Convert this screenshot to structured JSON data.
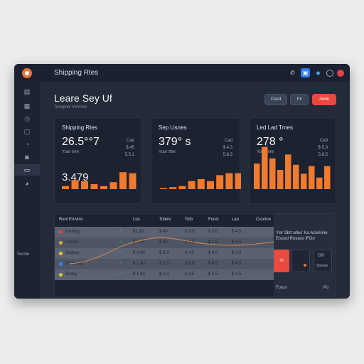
{
  "app": {
    "title": "Shipping Rtes"
  },
  "titlebar_icons": [
    "phone-icon",
    "calendar-icon",
    "app-icon",
    "smile-icon",
    "record-icon"
  ],
  "sidebar": {
    "items": [
      "box-icon",
      "grid-icon",
      "clock-icon",
      "calendar-icon",
      "tag-icon",
      "bag-icon",
      "card-icon",
      "truck-icon"
    ],
    "label": "Seroin"
  },
  "header": {
    "title": "Leare Sey Uf",
    "subtitle": "Tecspncl Verrnne",
    "buttons": [
      "Coed",
      "Fil",
      "Aride"
    ]
  },
  "cards": [
    {
      "title": "Shipping Rtes",
      "value": "26.5°°7",
      "note": "Yuor inre",
      "side": [
        "Cad",
        "$ 45",
        "5.5.1"
      ],
      "big": "3.479",
      "bars": [
        3,
        9,
        8,
        5,
        3,
        7,
        17,
        16
      ]
    },
    {
      "title": "Sep Lisnes",
      "value": "379° s",
      "note": "Yuor Ithe",
      "side": [
        "Cad",
        "$ 4.3",
        "5.8.3"
      ],
      "big": "",
      "bars": [
        1,
        2,
        3,
        8,
        10,
        8,
        14,
        16,
        16
      ]
    },
    {
      "title": "Led Lad Tmes",
      "value": "278 °",
      "note": "Your Inre",
      "side": [
        "Cad",
        "$ 5.3",
        "5.8.5"
      ],
      "big": "",
      "bars": [
        20,
        33,
        24,
        15,
        27,
        19,
        12,
        18,
        9,
        18
      ]
    }
  ],
  "table": {
    "headers": [
      "Reol Emvins",
      "Lus",
      "Toiere",
      "Toib",
      "Fouls",
      "Lao",
      "Cuorine"
    ],
    "rows": [
      {
        "name": "Bxdiopy",
        "color": "#e24545",
        "cols": [
          "$1.83",
          "$ 45",
          "$ 3.5",
          "$ 3.0",
          "$ 4.5"
        ]
      },
      {
        "name": "Pozers",
        "color": "#e9a53a",
        "cols": [
          "$ 1.30",
          "$ 49",
          "$ 4.5",
          "$ 2.5",
          "$ 4.5"
        ]
      },
      {
        "name": "Bxdsuy",
        "color": "#e9c23a",
        "cols": [
          "$ 3.40",
          "$ 3.3",
          "$ 4.5",
          "$ 4.0",
          "$ 4.5"
        ]
      },
      {
        "name": "Ediboesy",
        "color": "#2d7ff9",
        "cols": [
          "$ 1.40",
          "$ 3.3",
          "$ 0.5",
          "$ 4.5",
          "$ 4.5"
        ]
      },
      {
        "name": "Bxdsy",
        "color": "#e9c23a",
        "cols": [
          "$ 1.90",
          "$ 0.3",
          "$ 4.5",
          "$ 4.5",
          "$ 4.5"
        ]
      }
    ]
  },
  "panel": {
    "text": "Yisr Sbrt atles’ lra Ivcerione Elsosd Rosass IFGo",
    "red_label": "%",
    "code": "G©",
    "label": "Soroue",
    "foot_left": "Fonoi",
    "foot_right": "Po"
  },
  "colors": {
    "accent": "#e84a3f",
    "bar": "#f07a2e",
    "bg": "#232a38"
  }
}
